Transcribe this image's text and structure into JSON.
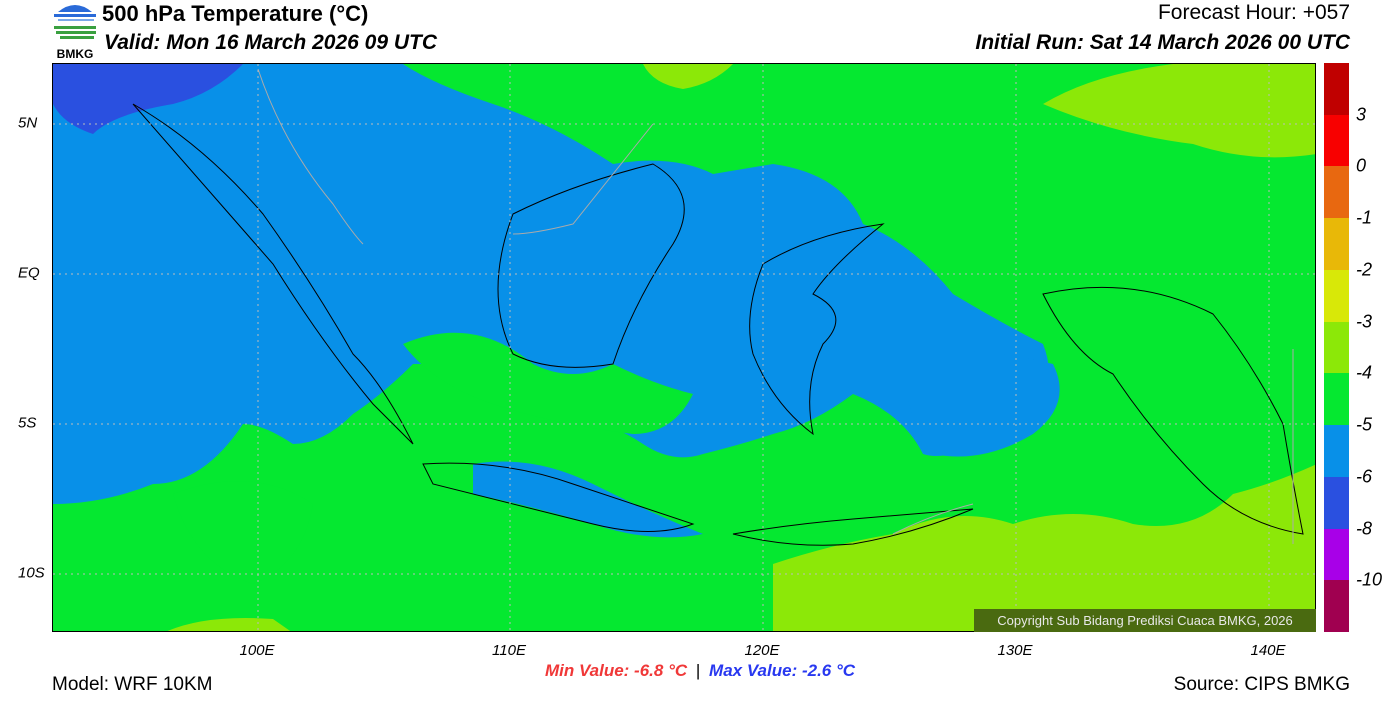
{
  "header": {
    "title": "500 hPa Temperature (°C)",
    "valid": "Valid: Mon 16 March 2026 09 UTC",
    "forecast_hour": "Forecast Hour: +057",
    "initial_run": "Initial Run: Sat 14 March 2026 00 UTC",
    "logo_text": "BMKG"
  },
  "map": {
    "lat_labels": [
      "5N",
      "EQ",
      "5S",
      "10S"
    ],
    "lon_labels": [
      "100E",
      "110E",
      "120E",
      "130E",
      "140E"
    ],
    "copyright": "Copyright Sub Bidang Prediksi Cuaca BMKG, 2026"
  },
  "colorbar": {
    "colors": [
      "#c00000",
      "#f80000",
      "#e86810",
      "#e8b808",
      "#d8e808",
      "#8ce808",
      "#05e830",
      "#0890e8",
      "#2a50e0",
      "#a800e8",
      "#a00050"
    ],
    "labels": [
      "3",
      "0",
      "-1",
      "-2",
      "-3",
      "-4",
      "-5",
      "-6",
      "-8",
      "-10"
    ]
  },
  "footer": {
    "min_value": "Min Value: -6.8 °C",
    "separator": "|",
    "max_value": "Max Value: -2.6 °C",
    "model": "Model: WRF 10KM",
    "source": "Source: CIPS BMKG"
  }
}
